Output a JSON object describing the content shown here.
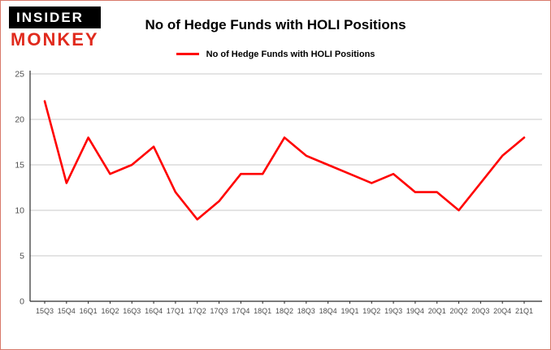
{
  "header": {
    "logo": {
      "line1": "INSIDER",
      "line2": "MONKEY"
    },
    "title": "No of Hedge Funds with HOLI Positions"
  },
  "legend": {
    "label": "No of Hedge Funds with HOLI Positions",
    "color": "#ff0000"
  },
  "chart_data": {
    "type": "line",
    "title": "No of Hedge Funds with HOLI Positions",
    "categories": [
      "15Q3",
      "15Q4",
      "16Q1",
      "16Q2",
      "16Q3",
      "16Q4",
      "17Q1",
      "17Q2",
      "17Q3",
      "17Q4",
      "18Q1",
      "18Q2",
      "18Q3",
      "18Q4",
      "19Q1",
      "19Q2",
      "19Q3",
      "19Q4",
      "20Q1",
      "20Q2",
      "20Q3",
      "20Q4",
      "21Q1"
    ],
    "values": [
      22,
      13,
      18,
      14,
      15,
      17,
      12,
      9,
      11,
      14,
      14,
      18,
      16,
      15,
      14,
      13,
      14,
      12,
      12,
      10,
      13,
      16,
      18
    ],
    "ylim": [
      0,
      25
    ],
    "yticks": [
      0,
      5,
      10,
      15,
      20,
      25
    ],
    "grid": true,
    "line_color": "#ff0000",
    "grid_color": "#c9c9c9",
    "axis_color": "#2b2b2b",
    "tick_label_color": "#4d4d4d",
    "legend_position": "top",
    "xlabel": "",
    "ylabel": ""
  }
}
